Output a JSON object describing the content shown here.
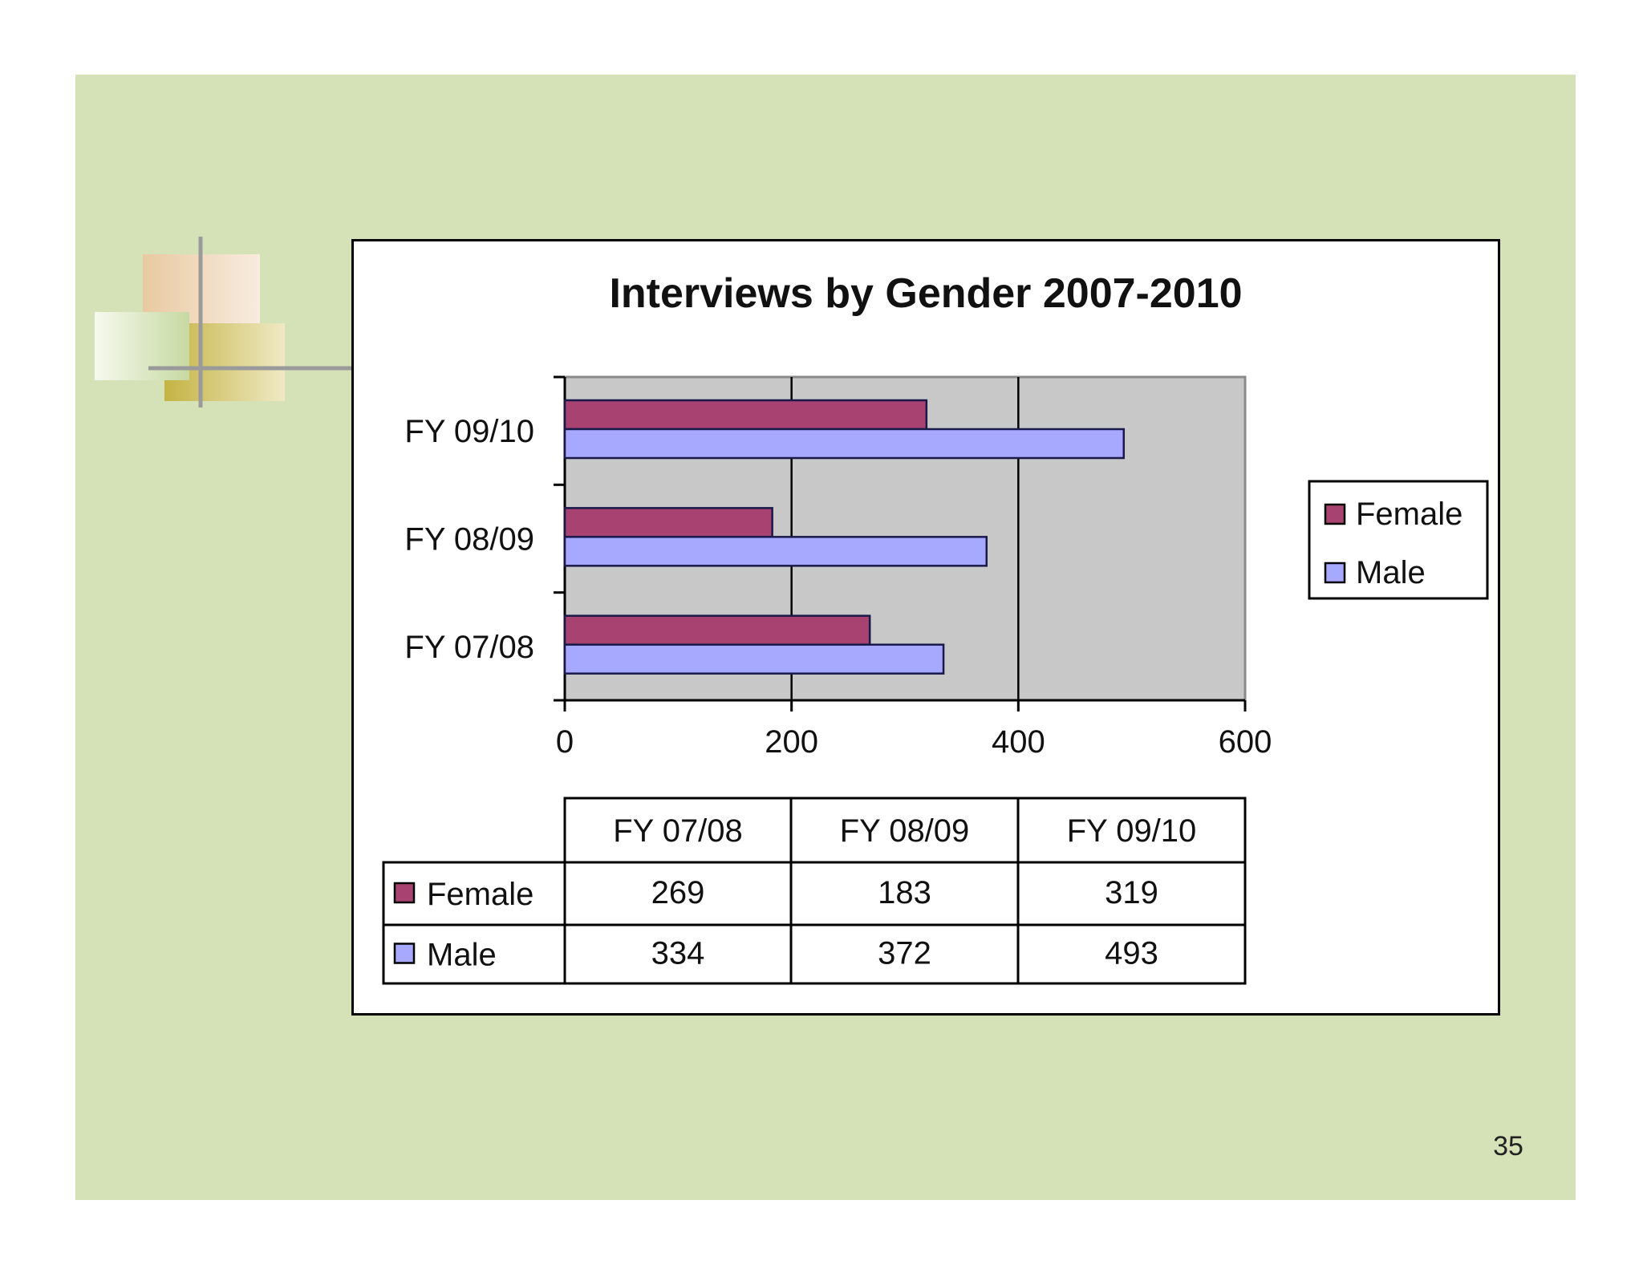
{
  "slide": {
    "page_number": "35"
  },
  "colors": {
    "background": "#d5e2b8",
    "female": "#a84270",
    "male": "#a7a8ff",
    "plot_area": "#c8c8c8"
  },
  "chart_data": {
    "type": "bar",
    "orientation": "horizontal",
    "title": "Interviews by Gender  2007-2010",
    "categories": [
      "FY 07/08",
      "FY 08/09",
      "FY 09/10"
    ],
    "series": [
      {
        "name": "Female",
        "values": [
          269,
          183,
          319
        ],
        "color": "#a84270"
      },
      {
        "name": "Male",
        "values": [
          334,
          372,
          493
        ],
        "color": "#a7a8ff"
      }
    ],
    "xlim": [
      0,
      600
    ],
    "x_ticks": [
      "0",
      "200",
      "400",
      "600"
    ],
    "grid": true,
    "legend": "right",
    "data_table": {
      "columns": [
        "FY 07/08",
        "FY 08/09",
        "FY 09/10"
      ],
      "rows": [
        {
          "label": "Female",
          "values": [
            "269",
            "183",
            "319"
          ]
        },
        {
          "label": "Male",
          "values": [
            "334",
            "372",
            "493"
          ]
        }
      ]
    }
  }
}
